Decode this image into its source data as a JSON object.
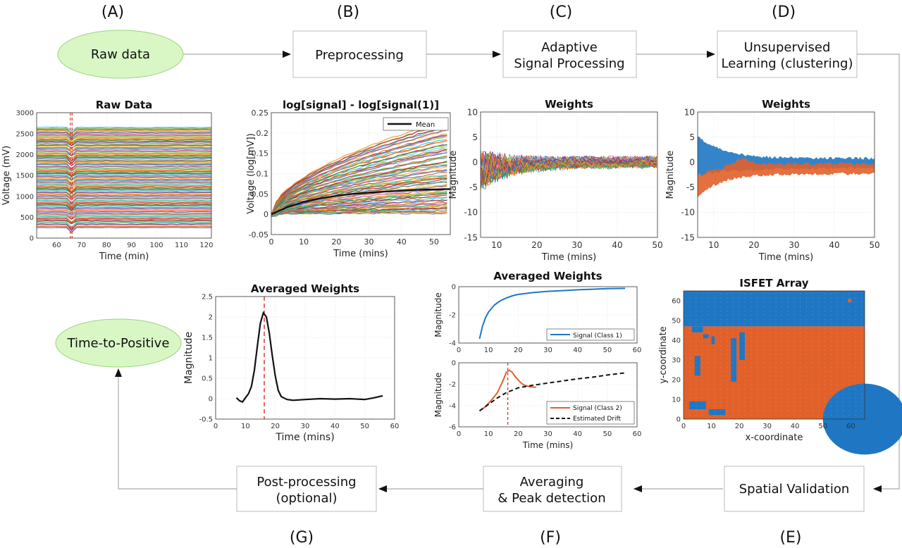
{
  "stage_letters": [
    "(A)",
    "(B)",
    "(C)",
    "(D)",
    "(E)",
    "(F)",
    "(G)"
  ],
  "nodes": {
    "raw": "Raw data",
    "pre": "Preprocessing",
    "asp": [
      "Adaptive",
      "Signal Processing"
    ],
    "ul": [
      "Unsupervised",
      "Learning (clustering)"
    ],
    "sv": "Spatial Validation",
    "avg": [
      "Averaging",
      "& Peak detection"
    ],
    "post": [
      "Post-processing",
      "(optional)"
    ],
    "ttp": "Time-to-Positive"
  },
  "colors": {
    "node_green": "#d9f7c5",
    "blue": "#1f77c4",
    "orange": "#e2612a",
    "red": "#e3281e"
  },
  "chart_data": [
    {
      "id": "raw",
      "type": "line",
      "title": "Raw Data",
      "xlabel": "Time (min)",
      "ylabel": "Voltage (mV)",
      "xlim": [
        52,
        122
      ],
      "ylim": [
        0,
        3000
      ],
      "xticks": [
        60,
        70,
        80,
        90,
        100,
        110,
        120
      ],
      "yticks": [
        0,
        500,
        1000,
        1500,
        2000,
        2500,
        3000
      ],
      "grid": true,
      "band": [
        250,
        2650
      ],
      "markers_x": [
        65.5,
        66.2
      ]
    },
    {
      "id": "log",
      "type": "line",
      "title": "log[signal] - log[signal(1)]",
      "xlabel": "Time (mins)",
      "ylabel": "Voltage (log[mV])",
      "xlim": [
        0,
        55
      ],
      "ylim": [
        -0.05,
        0.25
      ],
      "xticks": [
        0,
        10,
        20,
        30,
        40,
        50
      ],
      "yticks": [
        -0.05,
        0,
        0.05,
        0.1,
        0.15,
        0.2,
        0.25
      ],
      "grid": true,
      "legend": {
        "position": "top-right",
        "entries": [
          "Mean"
        ]
      },
      "series": [
        {
          "name": "Mean",
          "x": [
            0,
            5,
            10,
            15,
            20,
            25,
            30,
            35,
            40,
            45,
            50,
            55
          ],
          "values": [
            0,
            0.018,
            0.03,
            0.039,
            0.045,
            0.05,
            0.053,
            0.056,
            0.058,
            0.06,
            0.061,
            0.062
          ]
        }
      ],
      "envelope_max_at_end": 0.23
    },
    {
      "id": "weights",
      "type": "line",
      "title": "Weights",
      "xlabel": "Time (mins)",
      "ylabel": "Magnitude",
      "xlim": [
        6,
        50
      ],
      "ylim": [
        -15,
        10
      ],
      "xticks": [
        10,
        20,
        30,
        40,
        50
      ],
      "yticks": [
        -15,
        -10,
        -5,
        0,
        5,
        10
      ],
      "grid": true
    },
    {
      "id": "weights_clustered",
      "type": "area",
      "title": "Weights",
      "xlabel": "Time (mins)",
      "ylabel": "Magnitude",
      "xlim": [
        6,
        50
      ],
      "ylim": [
        -15,
        10
      ],
      "xticks": [
        10,
        20,
        30,
        40,
        50
      ],
      "yticks": [
        -15,
        -10,
        -5,
        0,
        5,
        10
      ],
      "grid": true
    },
    {
      "id": "isfet",
      "type": "heatmap",
      "title": "ISFET Array",
      "xlabel": "x-coordinate",
      "ylabel": "y-coordinate",
      "xlim": [
        0,
        65
      ],
      "ylim": [
        0,
        65
      ],
      "xticks": [
        0,
        10,
        20,
        30,
        40,
        50,
        60
      ],
      "yticks": [
        0,
        10,
        20,
        30,
        40,
        50,
        60
      ],
      "split_y": 47
    },
    {
      "id": "avg_class1",
      "type": "line",
      "title": "Averaged Weights",
      "xlabel": "",
      "ylabel": "Magnitude",
      "xlim": [
        0,
        60
      ],
      "ylim": [
        -4,
        0
      ],
      "xticks": [
        0,
        10,
        20,
        30,
        40,
        50,
        60
      ],
      "yticks": [
        -4,
        -2,
        0
      ],
      "grid": true,
      "legend": {
        "position": "bottom-right",
        "entries": [
          "Signal (Class 1)"
        ]
      },
      "series": [
        {
          "name": "Signal (Class 1)",
          "x": [
            7,
            8,
            9,
            10,
            12,
            14,
            16,
            18,
            20,
            25,
            30,
            35,
            40,
            45,
            50,
            56
          ],
          "values": [
            -3.7,
            -2.8,
            -2.2,
            -1.8,
            -1.3,
            -1.0,
            -0.8,
            -0.65,
            -0.55,
            -0.42,
            -0.33,
            -0.28,
            -0.22,
            -0.18,
            -0.14,
            -0.12
          ]
        }
      ]
    },
    {
      "id": "avg_class2",
      "type": "line",
      "title": "",
      "xlabel": "Time (mins)",
      "ylabel": "Magnitude",
      "xlim": [
        0,
        60
      ],
      "ylim": [
        -6,
        0
      ],
      "xticks": [
        0,
        10,
        20,
        30,
        40,
        50,
        60
      ],
      "yticks": [
        -6,
        -4,
        -2,
        0
      ],
      "grid": true,
      "legend": {
        "position": "bottom-right",
        "entries": [
          "Signal (Class 2)",
          "Estimated Drift"
        ]
      },
      "series": [
        {
          "name": "Signal (Class 2)",
          "x": [
            7,
            9,
            11,
            13,
            15,
            16,
            17,
            18,
            19,
            20,
            21,
            22,
            24,
            26
          ],
          "values": [
            -4.5,
            -4.1,
            -3.5,
            -2.8,
            -1.6,
            -0.9,
            -0.7,
            -0.9,
            -1.3,
            -1.6,
            -1.9,
            -2.1,
            -2.25,
            -2.3
          ]
        },
        {
          "name": "Estimated Drift",
          "x": [
            7,
            10,
            13,
            16,
            20,
            25,
            30,
            35,
            40,
            45,
            50,
            56
          ],
          "values": [
            -4.5,
            -3.9,
            -3.3,
            -2.8,
            -2.35,
            -2.1,
            -1.9,
            -1.7,
            -1.5,
            -1.35,
            -1.15,
            -0.95
          ]
        }
      ],
      "marker_x": 16.5
    },
    {
      "id": "avg_g",
      "type": "line",
      "title": "Averaged Weights",
      "xlabel": "Time (mins)",
      "ylabel": "Magnitude",
      "xlim": [
        0,
        60
      ],
      "ylim": [
        -0.5,
        2.5
      ],
      "xticks": [
        0,
        10,
        20,
        30,
        40,
        50,
        60
      ],
      "yticks": [
        -0.5,
        0,
        0.5,
        1,
        1.5,
        2,
        2.5
      ],
      "grid": true,
      "series": [
        {
          "name": "",
          "x": [
            7,
            8,
            9,
            10,
            11,
            12,
            13,
            14,
            15,
            16,
            17,
            18,
            19,
            20,
            21,
            22,
            24,
            26,
            30,
            35,
            40,
            45,
            50,
            53,
            56
          ],
          "values": [
            0.02,
            -0.05,
            -0.08,
            0.02,
            0.12,
            0.3,
            0.7,
            1.3,
            1.85,
            2.1,
            2.0,
            1.6,
            1.05,
            0.55,
            0.2,
            0.05,
            -0.02,
            -0.04,
            -0.02,
            0.0,
            -0.01,
            0.0,
            -0.02,
            0.02,
            0.07
          ]
        }
      ],
      "marker_x": 16.3
    }
  ]
}
